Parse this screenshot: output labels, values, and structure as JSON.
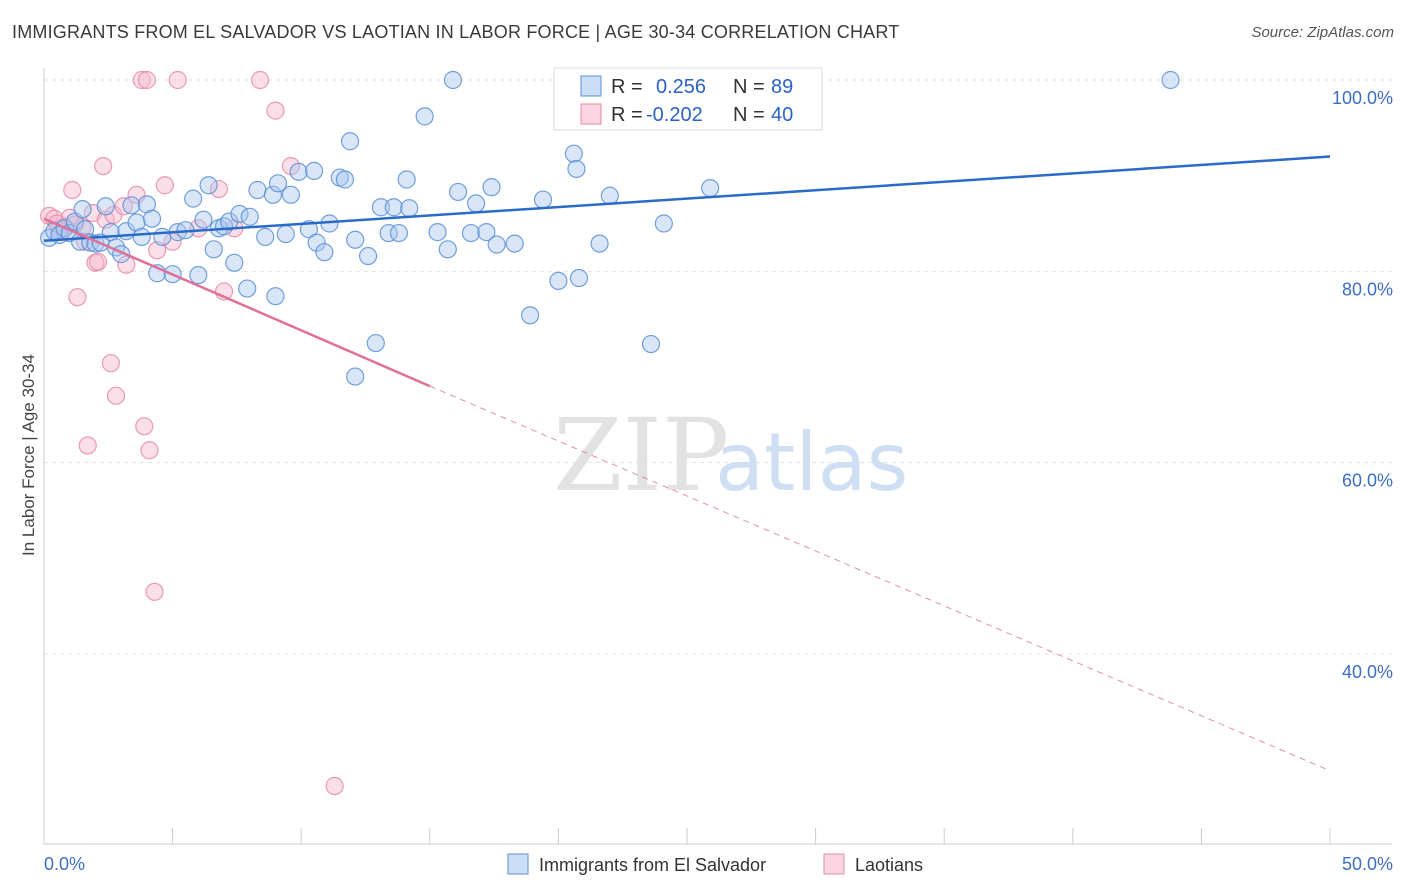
{
  "header": {
    "title": "IMMIGRANTS FROM EL SALVADOR VS LAOTIAN IN LABOR FORCE | AGE 30-34 CORRELATION CHART",
    "source": "Source: ZipAtlas.com"
  },
  "watermark": {
    "part1": "ZIP",
    "part2": "atlas"
  },
  "legend_top": [
    {
      "r_label": "R =",
      "r_value": "0.256",
      "n_label": "N =",
      "n_value": "89"
    },
    {
      "r_label": "R =",
      "r_value": "-0.202",
      "n_label": "N =",
      "n_value": "40"
    }
  ],
  "legend_bottom": [
    "Immigrants from El Salvador",
    "Laotians"
  ],
  "colors": {
    "blue_fill": "#a9c8f0",
    "blue_stroke": "#5b8fd6",
    "blue_line": "#2a6ac8",
    "pink_fill": "#f6b8cc",
    "pink_stroke": "#e68aa8",
    "pink_line": "#e0709a"
  },
  "chart_data": {
    "type": "scatter",
    "title": "IMMIGRANTS FROM EL SALVADOR VS LAOTIAN IN LABOR FORCE | AGE 30-34 CORRELATION CHART",
    "xlabel": "",
    "ylabel": "In Labor Force | Age 30-34",
    "xlim": [
      0,
      50
    ],
    "ylim": [
      20,
      102
    ],
    "x_tick_labels": [
      "0.0%",
      "50.0%"
    ],
    "y_ticks": [
      {
        "value": 100,
        "label": "100.0%"
      },
      {
        "value": 80,
        "label": "80.0%"
      },
      {
        "value": 60,
        "label": "60.0%"
      },
      {
        "value": 40,
        "label": "40.0%"
      }
    ],
    "grid": true,
    "series": [
      {
        "name": "Immigrants from El Salvador",
        "trend": {
          "x0": 0,
          "y0": 83.2,
          "x1": 50,
          "y1": 92.0
        },
        "points": [
          [
            0.2,
            83.5
          ],
          [
            0.4,
            84.2
          ],
          [
            0.6,
            83.8
          ],
          [
            0.8,
            84.5
          ],
          [
            1.0,
            84.0
          ],
          [
            1.2,
            85.2
          ],
          [
            1.4,
            83.1
          ],
          [
            1.6,
            84.4
          ],
          [
            1.8,
            83.0
          ],
          [
            2.0,
            82.9
          ],
          [
            2.2,
            83.0
          ],
          [
            2.4,
            86.8
          ],
          [
            2.6,
            84.1
          ],
          [
            2.8,
            82.5
          ],
          [
            3.0,
            81.8
          ],
          [
            3.2,
            84.2
          ],
          [
            3.4,
            86.9
          ],
          [
            3.6,
            85.1
          ],
          [
            3.8,
            83.6
          ],
          [
            4.0,
            87.0
          ],
          [
            4.2,
            85.5
          ],
          [
            4.4,
            79.8
          ],
          [
            4.6,
            83.6
          ],
          [
            5.0,
            79.7
          ],
          [
            5.2,
            84.1
          ],
          [
            5.5,
            84.3
          ],
          [
            5.8,
            87.6
          ],
          [
            6.0,
            79.6
          ],
          [
            6.2,
            85.4
          ],
          [
            6.4,
            89.0
          ],
          [
            6.6,
            82.3
          ],
          [
            6.8,
            84.5
          ],
          [
            7.0,
            84.7
          ],
          [
            7.2,
            85.2
          ],
          [
            7.4,
            80.9
          ],
          [
            7.6,
            86.0
          ],
          [
            7.9,
            78.2
          ],
          [
            8.0,
            85.7
          ],
          [
            8.3,
            88.5
          ],
          [
            8.6,
            83.6
          ],
          [
            8.9,
            88.0
          ],
          [
            9.0,
            77.4
          ],
          [
            9.4,
            83.9
          ],
          [
            9.6,
            88.0
          ],
          [
            9.9,
            90.4
          ],
          [
            10.3,
            84.4
          ],
          [
            10.5,
            90.5
          ],
          [
            10.6,
            83.0
          ],
          [
            10.9,
            82.0
          ],
          [
            11.1,
            85.0
          ],
          [
            11.5,
            89.8
          ],
          [
            11.7,
            89.6
          ],
          [
            11.9,
            93.6
          ],
          [
            12.1,
            69.0
          ],
          [
            12.1,
            83.3
          ],
          [
            12.6,
            81.6
          ],
          [
            12.9,
            72.5
          ],
          [
            13.1,
            86.7
          ],
          [
            13.4,
            84.0
          ],
          [
            13.6,
            86.7
          ],
          [
            13.8,
            84.0
          ],
          [
            14.1,
            89.6
          ],
          [
            14.2,
            86.6
          ],
          [
            14.8,
            96.2
          ],
          [
            15.3,
            84.1
          ],
          [
            15.7,
            82.3
          ],
          [
            15.9,
            100.0
          ],
          [
            16.1,
            88.3
          ],
          [
            16.6,
            84.0
          ],
          [
            16.8,
            87.1
          ],
          [
            17.2,
            84.1
          ],
          [
            17.4,
            88.8
          ],
          [
            17.6,
            82.8
          ],
          [
            18.3,
            82.9
          ],
          [
            18.9,
            75.4
          ],
          [
            19.4,
            87.5
          ],
          [
            20.0,
            79.0
          ],
          [
            20.3,
            97.1
          ],
          [
            20.6,
            92.3
          ],
          [
            20.7,
            90.7
          ],
          [
            20.8,
            79.3
          ],
          [
            21.6,
            82.9
          ],
          [
            22.0,
            87.9
          ],
          [
            23.6,
            72.4
          ],
          [
            24.1,
            85.0
          ],
          [
            25.9,
            88.7
          ],
          [
            43.8,
            100.0
          ],
          [
            1.5,
            86.5
          ],
          [
            9.1,
            89.2
          ]
        ]
      },
      {
        "name": "Laotians",
        "trend": {
          "x0": 0,
          "y0": 85.5,
          "x1": 15,
          "y1": 68.0,
          "dash_to_x": 50,
          "dash_to_y": 27.8
        },
        "points": [
          [
            0.2,
            85.8
          ],
          [
            0.4,
            85.5
          ],
          [
            0.6,
            84.3
          ],
          [
            0.8,
            84.7
          ],
          [
            1.0,
            85.6
          ],
          [
            1.1,
            88.5
          ],
          [
            1.2,
            84.9
          ],
          [
            1.3,
            77.3
          ],
          [
            1.6,
            83.1
          ],
          [
            1.7,
            61.8
          ],
          [
            1.9,
            86.1
          ],
          [
            2.0,
            80.9
          ],
          [
            2.1,
            81.0
          ],
          [
            2.3,
            91.0
          ],
          [
            2.4,
            85.4
          ],
          [
            2.6,
            70.4
          ],
          [
            2.7,
            85.9
          ],
          [
            2.8,
            67.0
          ],
          [
            3.1,
            86.8
          ],
          [
            3.2,
            80.7
          ],
          [
            3.6,
            88.0
          ],
          [
            3.8,
            100.0
          ],
          [
            3.9,
            63.8
          ],
          [
            4.0,
            100.0
          ],
          [
            4.1,
            61.3
          ],
          [
            4.3,
            46.5
          ],
          [
            4.4,
            82.2
          ],
          [
            4.7,
            89.0
          ],
          [
            5.0,
            83.1
          ],
          [
            5.2,
            100.0
          ],
          [
            6.0,
            84.5
          ],
          [
            6.8,
            88.6
          ],
          [
            7.0,
            77.9
          ],
          [
            7.4,
            84.5
          ],
          [
            8.4,
            100.0
          ],
          [
            9.0,
            96.8
          ],
          [
            9.6,
            91.0
          ],
          [
            11.3,
            26.2
          ],
          [
            0.5,
            85.0
          ],
          [
            1.5,
            84.6
          ]
        ]
      }
    ]
  }
}
